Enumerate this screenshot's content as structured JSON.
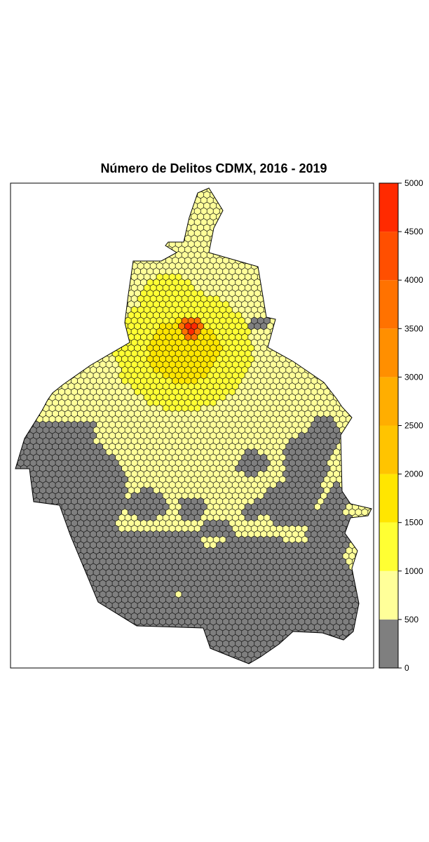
{
  "map": {
    "title": "Número de Delitos CDMX, 2016 - 2019"
  },
  "legend": {
    "min": 0,
    "max": 5000,
    "step": 500,
    "tick_labels": [
      "0",
      "500",
      "1000",
      "1500",
      "2000",
      "2500",
      "3000",
      "3500",
      "4000",
      "4500",
      "5000"
    ],
    "colors": [
      "#7f7f7f",
      "#ffff99",
      "#ffff33",
      "#ffe600",
      "#ffc400",
      "#ffae00",
      "#ff8f00",
      "#ff7200",
      "#ff4f00",
      "#ff2a00",
      "#ff0000"
    ]
  },
  "colors": {
    "background": "#ffffff",
    "frame": "#000000",
    "cell_border": "#111111"
  }
}
